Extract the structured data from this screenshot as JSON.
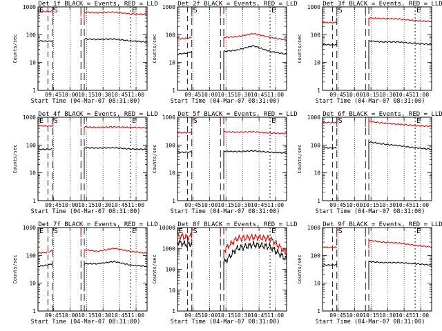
{
  "colors": {
    "events": "#000000",
    "lld": "#e00000",
    "frame": "#000000",
    "background": "#ffffff"
  },
  "chart_data": [
    {
      "type": "line",
      "title": "Det 1f BLACK = Events, RED = LLD",
      "xlabel": "Start Time (04-Mar-07 08:31:00)",
      "ylabel": "Counts/sec",
      "yscale": "log",
      "ylim": [
        1,
        1000
      ],
      "ytick_labels": [
        "1",
        "10",
        "100",
        "1000"
      ],
      "xtick_labels": [
        "09:45",
        "10:00",
        "10:15",
        "10:30",
        "10:45",
        "11:00"
      ],
      "xlim": [
        "09:31",
        "11:10"
      ],
      "markers": [
        "E",
        "S",
        "E"
      ],
      "x": [
        "09:31",
        "09:40",
        "09:44",
        "10:10",
        "10:13",
        "10:25",
        "10:40",
        "10:55",
        "11:10"
      ],
      "series": [
        {
          "name": "BLACK = Events",
          "values": [
            60,
            58,
            60,
            null,
            70,
            68,
            70,
            60,
            55
          ]
        },
        {
          "name": "RED = LLD",
          "values": [
            700,
            680,
            700,
            null,
            650,
            620,
            650,
            560,
            540
          ]
        }
      ]
    },
    {
      "type": "line",
      "title": "Det 2f BLACK = Events, RED = LLD",
      "xlabel": "Start Time (04-Mar-07 08:31:00)",
      "ylabel": "Counts/sec",
      "yscale": "log",
      "ylim": [
        1,
        1000
      ],
      "ytick_labels": [
        "1",
        "10",
        "100",
        "1000"
      ],
      "xtick_labels": [
        "09:45",
        "10:00",
        "10:15",
        "10:30",
        "10:45",
        "11:00"
      ],
      "xlim": [
        "09:31",
        "11:10"
      ],
      "markers": [
        "S",
        "E"
      ],
      "x": [
        "09:31",
        "09:40",
        "09:44",
        "10:10",
        "10:13",
        "10:25",
        "10:40",
        "10:55",
        "11:10"
      ],
      "series": [
        {
          "name": "BLACK = Events",
          "values": [
            20,
            22,
            25,
            null,
            25,
            28,
            40,
            25,
            20
          ]
        },
        {
          "name": "RED = LLD",
          "values": [
            70,
            75,
            80,
            null,
            80,
            85,
            110,
            80,
            65
          ]
        }
      ]
    },
    {
      "type": "line",
      "title": "Det 3f BLACK = Events, RED = LLD",
      "xlabel": "Start Time (04-Mar-07 08:31:00)",
      "ylabel": "Counts/sec",
      "yscale": "log",
      "ylim": [
        1,
        1000
      ],
      "ytick_labels": [
        "1",
        "10",
        "100",
        "1000"
      ],
      "xtick_labels": [
        "09:45",
        "10:00",
        "10:15",
        "10:30",
        "10:45",
        "11:00"
      ],
      "xlim": [
        "09:31",
        "11:10"
      ],
      "markers": [
        "S",
        "E"
      ],
      "x": [
        "09:31",
        "09:40",
        "09:44",
        "10:10",
        "10:13",
        "10:25",
        "10:40",
        "10:55",
        "11:10"
      ],
      "series": [
        {
          "name": "BLACK = Events",
          "values": [
            45,
            43,
            45,
            null,
            60,
            55,
            55,
            48,
            45
          ]
        },
        {
          "name": "RED = LLD",
          "values": [
            280,
            270,
            280,
            null,
            400,
            380,
            370,
            320,
            300
          ]
        }
      ]
    },
    {
      "type": "line",
      "title": "Det 4f BLACK = Events, RED = LLD",
      "xlabel": "Start Time (04-Mar-07 08:31:00)",
      "ylabel": "Counts/sec",
      "yscale": "log",
      "ylim": [
        1,
        1000
      ],
      "ytick_labels": [
        "1",
        "10",
        "100",
        "1000"
      ],
      "xtick_labels": [
        "09:45",
        "10:00",
        "10:15",
        "10:30",
        "10:45",
        "11:00"
      ],
      "xlim": [
        "09:31",
        "11:10"
      ],
      "markers": [
        "E",
        "S",
        "E"
      ],
      "x": [
        "09:31",
        "09:40",
        "09:44",
        "10:10",
        "10:13",
        "10:25",
        "10:40",
        "10:55",
        "11:10"
      ],
      "series": [
        {
          "name": "BLACK = Events",
          "values": [
            70,
            70,
            72,
            null,
            80,
            78,
            80,
            72,
            70
          ]
        },
        {
          "name": "RED = LLD",
          "values": [
            500,
            480,
            490,
            null,
            450,
            430,
            450,
            430,
            420
          ]
        }
      ]
    },
    {
      "type": "line",
      "title": "Det 5f BLACK = Events, RED = LLD",
      "xlabel": "Start Time (04-Mar-07 08:31:00)",
      "ylabel": "Counts/sec",
      "yscale": "log",
      "ylim": [
        1,
        1000
      ],
      "ytick_labels": [
        "1",
        "10",
        "100",
        "1000"
      ],
      "xtick_labels": [
        "09:45",
        "10:00",
        "10:15",
        "10:30",
        "10:45",
        "11:00"
      ],
      "xlim": [
        "09:31",
        "11:10"
      ],
      "markers": [
        "S",
        "E"
      ],
      "x": [
        "09:31",
        "09:40",
        "09:44",
        "10:10",
        "10:13",
        "10:25",
        "10:40",
        "10:55",
        "11:10"
      ],
      "series": [
        {
          "name": "BLACK = Events",
          "values": [
            55,
            55,
            57,
            null,
            60,
            58,
            62,
            55,
            52
          ]
        },
        {
          "name": "RED = LLD",
          "values": [
            280,
            280,
            290,
            null,
            300,
            290,
            300,
            270,
            260
          ]
        }
      ]
    },
    {
      "type": "line",
      "title": "Det 6f BLACK = Events, RED = LLD",
      "xlabel": "Start Time (04-Mar-07 08:31:00)",
      "ylabel": "Counts/sec",
      "yscale": "log",
      "ylim": [
        1,
        1000
      ],
      "ytick_labels": [
        "1",
        "10",
        "100",
        "1000"
      ],
      "xtick_labels": [
        "09:45",
        "10:00",
        "10:15",
        "10:30",
        "10:45",
        "11:00"
      ],
      "xlim": [
        "09:31",
        "11:10"
      ],
      "markers": [
        "S",
        "E"
      ],
      "x": [
        "09:31",
        "09:40",
        "09:44",
        "10:10",
        "10:13",
        "10:25",
        "10:40",
        "10:55",
        "11:10"
      ],
      "series": [
        {
          "name": "BLACK = Events",
          "values": [
            80,
            78,
            80,
            null,
            130,
            110,
            95,
            80,
            70
          ]
        },
        {
          "name": "RED = LLD",
          "values": [
            650,
            640,
            660,
            null,
            720,
            620,
            560,
            500,
            470
          ]
        }
      ]
    },
    {
      "type": "line",
      "title": "Det 7f BLACK = Events, RED = LLD",
      "xlabel": "Start Time (04-Mar-07 08:31:00)",
      "ylabel": "Counts/sec",
      "yscale": "log",
      "ylim": [
        1,
        1000
      ],
      "ytick_labels": [
        "1",
        "10",
        "100",
        "1000"
      ],
      "xtick_labels": [
        "09:45",
        "10:00",
        "10:15",
        "10:30",
        "10:45",
        "11:00"
      ],
      "xlim": [
        "09:31",
        "11:10"
      ],
      "markers": [
        "E",
        "S",
        "E"
      ],
      "x": [
        "09:31",
        "09:40",
        "09:44",
        "10:10",
        "10:13",
        "10:25",
        "10:40",
        "10:55",
        "11:10"
      ],
      "series": [
        {
          "name": "BLACK = Events",
          "values": [
            40,
            45,
            50,
            null,
            50,
            50,
            60,
            45,
            40
          ]
        },
        {
          "name": "RED = LLD",
          "values": [
            120,
            130,
            150,
            null,
            160,
            140,
            180,
            140,
            120
          ]
        }
      ]
    },
    {
      "type": "line",
      "title": "Det 8f BLACK = Events, RED = LLD",
      "xlabel": "Start Time (04-Mar-07 08:31:00)",
      "ylabel": "Counts/sec",
      "yscale": "log",
      "ylim": [
        1,
        10000
      ],
      "ytick_labels": [
        "1",
        "10",
        "100",
        "1000",
        "10000"
      ],
      "xtick_labels": [
        "09:45",
        "10:00",
        "10:15",
        "10:30",
        "10:45",
        "11:00"
      ],
      "xlim": [
        "09:31",
        "11:10"
      ],
      "markers": [
        "E",
        "S",
        "E"
      ],
      "x": [
        "09:31",
        "09:40",
        "09:44",
        "10:10",
        "10:13",
        "10:25",
        "10:40",
        "10:55",
        "11:10"
      ],
      "series": [
        {
          "name": "BLACK = Events",
          "values": [
            2000,
            1500,
            1800,
            null,
            200,
            1000,
            1500,
            1200,
            300
          ]
        },
        {
          "name": "RED = LLD",
          "values": [
            4000,
            3500,
            4000,
            null,
            800,
            3000,
            3500,
            3000,
            600
          ]
        }
      ]
    },
    {
      "type": "line",
      "title": "Det 9f BLACK = Events, RED = LLD",
      "xlabel": "Start Time (04-Mar-07 08:31:00)",
      "ylabel": "Counts/sec",
      "yscale": "log",
      "ylim": [
        1,
        1000
      ],
      "ytick_labels": [
        "1",
        "10",
        "100",
        "1000"
      ],
      "xtick_labels": [
        "09:45",
        "10:00",
        "10:15",
        "10:30",
        "10:45",
        "11:00"
      ],
      "xlim": [
        "09:31",
        "11:10"
      ],
      "markers": [
        "S",
        "E"
      ],
      "x": [
        "09:31",
        "09:40",
        "09:44",
        "10:10",
        "10:13",
        "10:25",
        "10:40",
        "10:55",
        "11:10"
      ],
      "series": [
        {
          "name": "BLACK = Events",
          "values": [
            45,
            45,
            47,
            null,
            60,
            55,
            55,
            50,
            45
          ]
        },
        {
          "name": "RED = LLD",
          "values": [
            200,
            190,
            200,
            null,
            350,
            300,
            280,
            230,
            200
          ]
        }
      ]
    }
  ]
}
